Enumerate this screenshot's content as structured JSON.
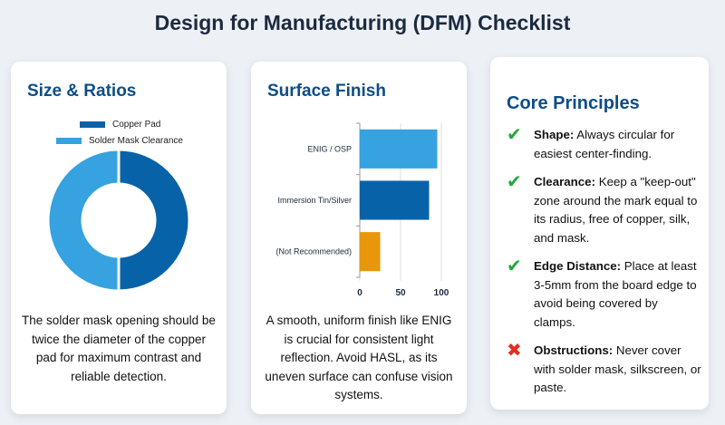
{
  "title": "Design for Manufacturing (DFM) Checklist",
  "cards": [
    {
      "heading": "Size & Ratios",
      "description": "The solder mask opening should be twice the diameter of the copper pad for maximum contrast and reliable detection."
    },
    {
      "heading": "Surface Finish",
      "description": "A smooth, uniform finish like ENIG is crucial for consistent light reflection. Avoid HASL, as its uneven surface can confuse vision systems."
    },
    {
      "heading": "Core Principles",
      "items": [
        {
          "icon": "check-icon",
          "label": "Shape:",
          "text": " Always circular for easiest center-finding."
        },
        {
          "icon": "check-icon",
          "label": "Clearance:",
          "text": " Keep a \"keep-out\" zone around the mark equal to its radius, free of copper, silk, and mask."
        },
        {
          "icon": "check-icon",
          "label": "Edge Distance:",
          "text": " Place at least 3-5mm from the board edge to avoid being covered by clamps."
        },
        {
          "icon": "cross-icon",
          "label": "Obstructions:",
          "text": " Never cover with solder mask, silkscreen, or paste."
        }
      ]
    }
  ],
  "chart_data": [
    {
      "type": "pie",
      "donut": true,
      "categories": [
        "Copper Pad",
        "Solder Mask Clearance"
      ],
      "values": [
        50,
        50
      ],
      "colors": [
        "#0862a8",
        "#36a2e0"
      ],
      "legend": "top"
    },
    {
      "type": "bar",
      "orientation": "horizontal",
      "categories": [
        "ENIG / OSP",
        "Immersion Tin/Silver",
        "(Not Recommended)"
      ],
      "values": [
        95,
        85,
        25
      ],
      "colors": [
        "#36a2e0",
        "#0862a8",
        "#e8960a"
      ],
      "xlim": [
        0,
        100
      ],
      "xticks": [
        "0",
        "50",
        "100"
      ],
      "grid": true
    }
  ],
  "colors": {
    "check": "#22a83a",
    "cross": "#e0301e",
    "heading": "#0d4d86"
  }
}
